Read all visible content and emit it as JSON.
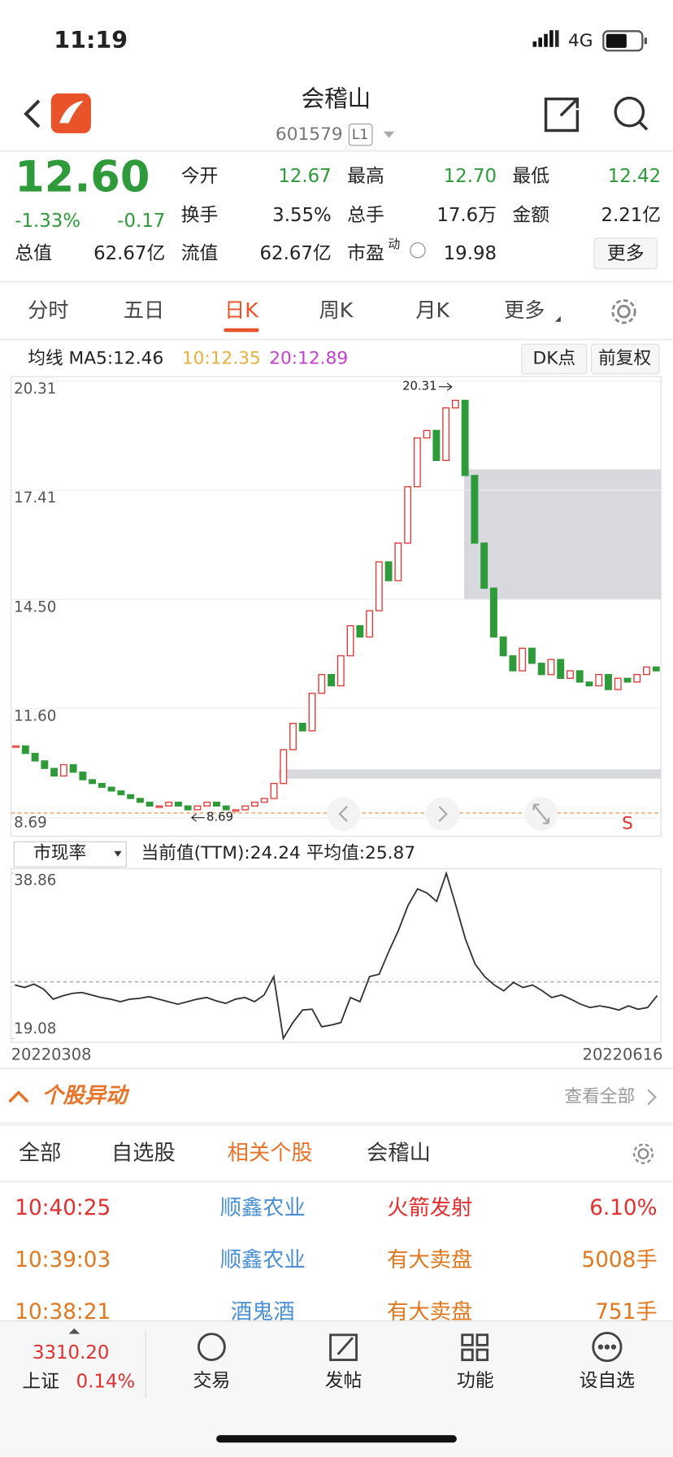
{
  "status": {
    "time": "11:19",
    "network": "4G"
  },
  "header": {
    "title": "会稽山",
    "code": "601579",
    "level": "L1"
  },
  "quote": {
    "price": "12.60",
    "change_pct": "-1.33%",
    "change": "-0.17",
    "cap": {
      "label": "总值",
      "value": "62.67亿"
    },
    "fields": [
      [
        {
          "label": "今开",
          "value": "12.67"
        },
        {
          "label": "最高",
          "value": "12.70"
        },
        {
          "label": "最低",
          "value": "12.42"
        }
      ],
      [
        {
          "label": "换手",
          "value": "3.55%"
        },
        {
          "label": "总手",
          "value": "17.6万"
        },
        {
          "label": "金额",
          "value": "2.21亿"
        }
      ],
      [
        {
          "label": "流值",
          "value": "62.67亿"
        },
        {
          "label": "市盈",
          "sup": "动",
          "value": "19.98"
        }
      ]
    ],
    "more": "更多"
  },
  "tabs": [
    "分时",
    "五日",
    "日K",
    "周K",
    "月K",
    "更多"
  ],
  "active_tab": 2,
  "kline": {
    "type": "candlestick",
    "ma": {
      "ma5": "均线 MA5:12.46",
      "ma10": "10:12.35",
      "ma20": "20:12.89"
    },
    "buttons": [
      "DK点",
      "前复权"
    ],
    "ylim": [
      8.69,
      20.31
    ],
    "yticks": [
      8.69,
      {
        "value": 11.6,
        "label": "11.60"
      },
      {
        "value": 14.5,
        "label": "14.50"
      },
      17.41,
      20.31
    ],
    "max": 20.31,
    "min": 8.69,
    "rise_color": "#e03c3c",
    "fall_color": "#2e9a3a",
    "close": [
      10.6,
      10.4,
      10.2,
      10.0,
      9.8,
      10.1,
      9.9,
      9.7,
      9.6,
      9.5,
      9.4,
      9.3,
      9.2,
      9.1,
      9.0,
      9.0,
      9.1,
      9.0,
      8.9,
      9.0,
      9.1,
      9.0,
      8.9,
      8.9,
      9.0,
      9.1,
      9.2,
      9.6,
      10.5,
      11.2,
      11.0,
      12.0,
      12.5,
      12.2,
      13.0,
      13.8,
      13.5,
      14.2,
      15.5,
      15.0,
      16.0,
      17.5,
      18.8,
      19.0,
      18.2,
      19.6,
      19.8,
      17.8,
      16.0,
      14.8,
      13.5,
      13.0,
      12.6,
      13.2,
      12.8,
      12.5,
      12.9,
      12.4,
      12.6,
      12.3,
      12.2,
      12.5,
      12.1,
      12.4,
      12.3,
      12.5,
      12.7,
      12.6
    ]
  },
  "pe": {
    "type": "line",
    "selector": "市现率",
    "summary": "当前值(TTM):24.24 平均值:25.87",
    "ylim": [
      19.08,
      38.86
    ],
    "yticks": [
      19.08,
      38.86
    ],
    "average": 25.87,
    "color": "#333333",
    "values": [
      25.5,
      25.2,
      25.6,
      25.0,
      23.8,
      24.2,
      24.5,
      24.6,
      24.3,
      24.0,
      23.8,
      23.5,
      23.8,
      23.9,
      24.1,
      23.8,
      23.5,
      23.2,
      23.5,
      23.8,
      24.0,
      23.6,
      23.3,
      23.8,
      24.0,
      23.5,
      24.3,
      26.5,
      19.1,
      21.0,
      22.5,
      22.6,
      20.5,
      20.7,
      21.0,
      24.0,
      23.5,
      26.5,
      26.8,
      29.5,
      32.0,
      35.0,
      37.0,
      36.5,
      35.5,
      38.86,
      35.0,
      31.0,
      28.0,
      26.5,
      25.5,
      24.8,
      25.8,
      25.2,
      25.5,
      24.8,
      24.0,
      24.3,
      23.8,
      23.2,
      22.8,
      23.0,
      22.8,
      22.5,
      23.0,
      22.6,
      22.8,
      24.24
    ],
    "x_start": "20220308",
    "x_end": "20220616"
  },
  "alerts": {
    "title": "个股异动",
    "view_all": "查看全部",
    "tabs": [
      "全部",
      "自选股",
      "相关个股",
      "会稽山"
    ],
    "active_tab": 2,
    "rows": [
      [
        "10:40:25",
        "顺鑫农业",
        "火箭发射",
        "6.10%"
      ],
      [
        "10:39:03",
        "顺鑫农业",
        "有大卖盘",
        "5008手"
      ],
      [
        "10:38:21",
        "酒鬼酒",
        "有大卖盘",
        "751手"
      ]
    ]
  },
  "footer": {
    "index_value": "3310.20",
    "index_name": "上证",
    "index_change": "0.14%",
    "nav": [
      "交易",
      "发帖",
      "功能",
      "设自选"
    ]
  }
}
